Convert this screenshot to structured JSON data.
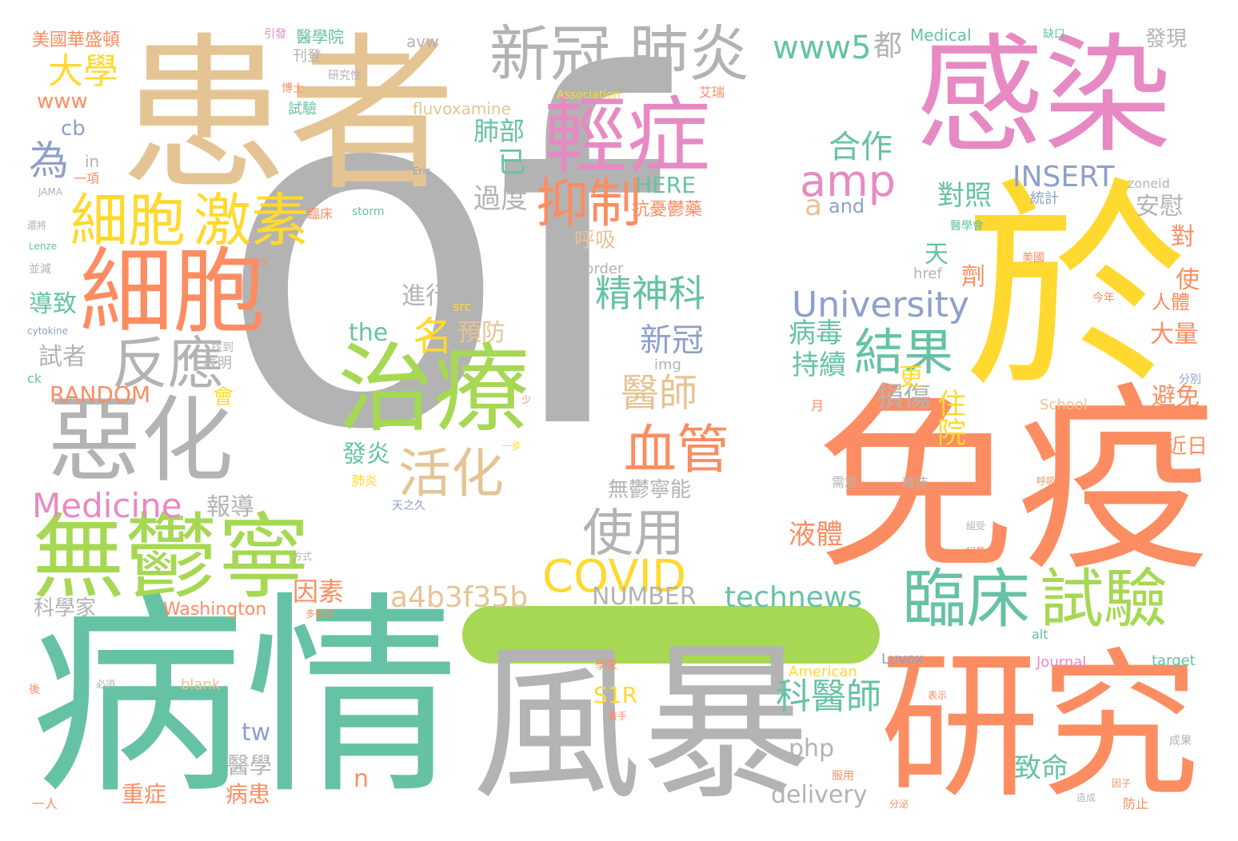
{
  "words": [
    {
      "text": "of",
      "color": "gray"
    },
    {
      "text": "患者",
      "color": "tan"
    },
    {
      "text": "感染",
      "color": "pink"
    },
    {
      "text": "病情",
      "color": "green"
    },
    {
      "text": "風暴",
      "color": "gray"
    },
    {
      "text": "研究",
      "color": "orange"
    },
    {
      "text": "免疫",
      "color": "orange"
    },
    {
      "text": "於",
      "color": "yellow"
    },
    {
      "text": "治療",
      "color": "lime"
    },
    {
      "text": "無鬱寧",
      "color": "lime"
    },
    {
      "text": "細胞",
      "color": "orange"
    },
    {
      "text": "惡化",
      "color": "gray"
    },
    {
      "text": "輕症",
      "color": "pink"
    },
    {
      "text": "新冠",
      "color": "gray"
    },
    {
      "text": "肺炎",
      "color": "gray"
    },
    {
      "text": "細胞",
      "color": "yellow"
    },
    {
      "text": "激素",
      "color": "yellow"
    },
    {
      "text": "臨床",
      "color": "green"
    },
    {
      "text": "試驗",
      "color": "lime"
    },
    {
      "text": "反應",
      "color": "gray"
    },
    {
      "text": "抑制",
      "color": "orange"
    },
    {
      "text": "血管",
      "color": "orange"
    },
    {
      "text": "活化",
      "color": "tan"
    },
    {
      "text": "結果",
      "color": "green"
    },
    {
      "text": "使用",
      "color": "gray"
    },
    {
      "text": "COVID",
      "color": "yellow"
    },
    {
      "text": "amp",
      "color": "pink"
    },
    {
      "text": "University",
      "color": "blue"
    },
    {
      "text": "Medicine",
      "color": "pink"
    },
    {
      "text": "大學",
      "color": "yellow"
    },
    {
      "text": "名",
      "color": "yellow"
    },
    {
      "text": "精神科",
      "color": "green"
    },
    {
      "text": "醫師",
      "color": "tan"
    },
    {
      "text": "科醫師",
      "color": "green"
    },
    {
      "text": "www5",
      "color": "green"
    },
    {
      "text": "都",
      "color": "gray"
    },
    {
      "text": "合作",
      "color": "green"
    },
    {
      "text": "INSERT",
      "color": "blue"
    },
    {
      "text": "a4b3f35b",
      "color": "tan"
    },
    {
      "text": "technews",
      "color": "green"
    },
    {
      "text": "NUMBER",
      "color": "gray"
    },
    {
      "text": "新冠",
      "color": "blue"
    },
    {
      "text": "為",
      "color": "blue"
    },
    {
      "text": "住院",
      "color": "yellow"
    },
    {
      "text": "致命",
      "color": "green"
    },
    {
      "text": "病毒",
      "color": "green"
    },
    {
      "text": "持續",
      "color": "green"
    },
    {
      "text": "損傷",
      "color": "gray"
    },
    {
      "text": "對照",
      "color": "green"
    },
    {
      "text": "過度",
      "color": "gray"
    },
    {
      "text": "肺部",
      "color": "green"
    },
    {
      "text": "已",
      "color": "green"
    },
    {
      "text": "the",
      "color": "green"
    },
    {
      "text": "預防",
      "color": "tan"
    },
    {
      "text": "進行",
      "color": "gray"
    },
    {
      "text": "發炎",
      "color": "green"
    },
    {
      "text": "液體",
      "color": "orange"
    },
    {
      "text": "無鬱寧能",
      "color": "gray"
    },
    {
      "text": "因素",
      "color": "orange"
    },
    {
      "text": "報導",
      "color": "gray"
    },
    {
      "text": "RANDOM",
      "color": "orange"
    },
    {
      "text": "試者",
      "color": "gray"
    },
    {
      "text": "導致",
      "color": "green"
    },
    {
      "text": "科學家",
      "color": "gray"
    },
    {
      "text": "美國華盛頓",
      "color": "orange"
    },
    {
      "text": "發現",
      "color": "gray"
    },
    {
      "text": "Medical",
      "color": "green"
    },
    {
      "text": "www",
      "color": "orange"
    },
    {
      "text": "cb",
      "color": "blue"
    },
    {
      "text": "delivery",
      "color": "gray"
    },
    {
      "text": "php",
      "color": "gray"
    },
    {
      "text": "重症",
      "color": "orange"
    },
    {
      "text": "病患",
      "color": "orange"
    },
    {
      "text": "醫學",
      "color": "gray"
    },
    {
      "text": "tw",
      "color": "blue"
    },
    {
      "text": "n",
      "color": "orange"
    },
    {
      "text": "S1R",
      "color": "yellow"
    },
    {
      "text": "Washington",
      "color": "orange"
    },
    {
      "text": "天",
      "color": "green"
    },
    {
      "text": "劑",
      "color": "orange"
    },
    {
      "text": "安慰",
      "color": "gray"
    },
    {
      "text": "統計",
      "color": "blue"
    },
    {
      "text": "對",
      "color": "orange"
    },
    {
      "text": "大量",
      "color": "orange"
    },
    {
      "text": "避免",
      "color": "orange"
    },
    {
      "text": "近日",
      "color": "orange"
    },
    {
      "text": "使",
      "color": "orange"
    },
    {
      "text": "人體",
      "color": "orange"
    },
    {
      "text": "更",
      "color": "yellow"
    },
    {
      "text": "呼吸",
      "color": "tan"
    },
    {
      "text": "抗憂鬱藥",
      "color": "orange"
    },
    {
      "text": "HERE",
      "color": "green"
    },
    {
      "text": "and",
      "color": "blue"
    },
    {
      "text": "a",
      "color": "tan"
    },
    {
      "text": "fluvoxamine",
      "color": "tan"
    },
    {
      "text": "Association",
      "color": "yellow"
    },
    {
      "text": "艾瑞",
      "color": "orange"
    },
    {
      "text": "avw",
      "color": "gray"
    },
    {
      "text": "引發",
      "color": "pink"
    },
    {
      "text": "醫學院",
      "color": "green"
    },
    {
      "text": "刊登",
      "color": "gray"
    },
    {
      "text": "博士",
      "color": "orange"
    },
    {
      "text": "研究性",
      "color": "gray"
    },
    {
      "text": "試驗",
      "color": "green"
    },
    {
      "text": "一項",
      "color": "orange"
    },
    {
      "text": "in",
      "color": "gray"
    },
    {
      "text": "JAMA",
      "color": "gray"
    },
    {
      "text": "還將",
      "color": "gray"
    },
    {
      "text": "Lenze",
      "color": "green"
    },
    {
      "text": "並減",
      "color": "gray"
    },
    {
      "text": "cytokine",
      "color": "blue"
    },
    {
      "text": "ck",
      "color": "green"
    },
    {
      "text": "表明",
      "color": "gray"
    },
    {
      "text": "找到",
      "color": "gray"
    },
    {
      "text": "會",
      "color": "yellow"
    },
    {
      "text": "本次",
      "color": "orange"
    },
    {
      "text": "臨床",
      "color": "orange"
    },
    {
      "text": "storm",
      "color": "green"
    },
    {
      "text": "維持",
      "color": "gray"
    },
    {
      "text": "Eric",
      "color": "blue"
    },
    {
      "text": "border",
      "color": "gray"
    },
    {
      "text": "href",
      "color": "gray"
    },
    {
      "text": "img",
      "color": "gray"
    },
    {
      "text": "src",
      "color": "yellow"
    },
    {
      "text": "zoneid",
      "color": "gray"
    },
    {
      "text": "School",
      "color": "tan"
    },
    {
      "text": "American",
      "color": "yellow"
    },
    {
      "text": "Journal",
      "color": "pink"
    },
    {
      "text": "Luvox",
      "color": "blue"
    },
    {
      "text": "alt",
      "color": "green"
    },
    {
      "text": "target",
      "color": "green"
    },
    {
      "text": "blank",
      "color": "tan"
    },
    {
      "text": "醫學會",
      "color": "green"
    },
    {
      "text": "美國",
      "color": "orange"
    },
    {
      "text": "今年",
      "color": "orange"
    },
    {
      "text": "分別",
      "color": "blue"
    },
    {
      "text": "成果",
      "color": "gray"
    },
    {
      "text": "防止",
      "color": "orange"
    },
    {
      "text": "缺口",
      "color": "green"
    },
    {
      "text": "一人",
      "color": "orange"
    },
    {
      "text": "後",
      "color": "orange"
    },
    {
      "text": "必須",
      "color": "gray"
    },
    {
      "text": "一步",
      "color": "yellow"
    },
    {
      "text": "少",
      "color": "orange"
    },
    {
      "text": "月",
      "color": "orange"
    },
    {
      "text": "需求",
      "color": "gray"
    },
    {
      "text": "雜誌",
      "color": "gray"
    },
    {
      "text": "肺炎",
      "color": "yellow"
    },
    {
      "text": "天之久",
      "color": "blue"
    },
    {
      "text": "方式",
      "color": "gray"
    },
    {
      "text": "多數針",
      "color": "orange"
    },
    {
      "text": "招募",
      "color": "orange"
    },
    {
      "text": "呼吸器",
      "color": "orange"
    },
    {
      "text": "組受",
      "color": "gray"
    },
    {
      "text": "服用",
      "color": "orange"
    },
    {
      "text": "分泌",
      "color": "orange"
    },
    {
      "text": "造成",
      "color": "gray"
    },
    {
      "text": "因子",
      "color": "orange"
    },
    {
      "text": "表示",
      "color": "orange"
    },
    {
      "text": "著手",
      "color": "orange"
    },
    {
      "text": "學家",
      "color": "orange"
    }
  ]
}
